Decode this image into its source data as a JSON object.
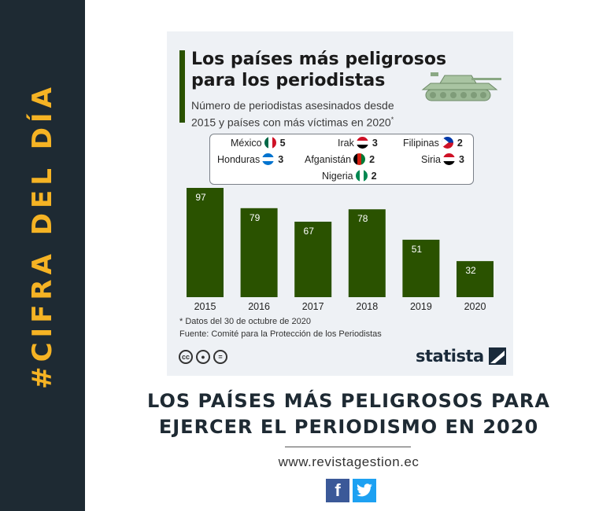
{
  "sidebar": {
    "label": "#CIFRA DEL DÍA"
  },
  "infographic": {
    "title_line1": "Los países más peligrosos",
    "title_line2": "para los periodistas",
    "subtitle_line1": "Número de periodistas asesinados desde",
    "subtitle_line2": "2015 y países con más víctimas en 2020",
    "subtitle_mark": "*",
    "legend": [
      {
        "country": "México",
        "value": "5",
        "flag": "mexico-flag-icon"
      },
      {
        "country": "Irak",
        "value": "3",
        "flag": "iraq-flag-icon"
      },
      {
        "country": "Filipinas",
        "value": "2",
        "flag": "philippines-flag-icon"
      },
      {
        "country": "Honduras",
        "value": "3",
        "flag": "honduras-flag-icon"
      },
      {
        "country": "Afganistán",
        "value": "2",
        "flag": "afghanistan-flag-icon"
      },
      {
        "country": "Siria",
        "value": "3",
        "flag": "syria-flag-icon"
      },
      {
        "country": "Nigeria",
        "value": "2",
        "flag": "nigeria-flag-icon"
      }
    ],
    "note": "* Datos del 30 de octubre de 2020",
    "source": "Fuente: Comité para la Protección de los Periodistas",
    "brand": "statista"
  },
  "chart_data": {
    "type": "bar",
    "categories": [
      "2015",
      "2016",
      "2017",
      "2018",
      "2019",
      "2020"
    ],
    "values": [
      97,
      79,
      67,
      78,
      51,
      32
    ],
    "bar_color": "#2a5200",
    "value_label_color": "#ffffff",
    "grid": false
  },
  "headline": {
    "line1": "LOS PAÍSES MÁS PELIGROSOS PARA",
    "line2": "EJERCER EL PERIODISMO EN 2020"
  },
  "footer": {
    "url": "www.revistagestion.ec",
    "social": [
      "facebook-icon",
      "twitter-icon"
    ]
  },
  "colors": {
    "sidebar_bg": "#1e2a33",
    "sidebar_text": "#f5b324",
    "card_bg": "#eef1f5",
    "accent": "#2a5200",
    "headline": "#1e2a33"
  }
}
